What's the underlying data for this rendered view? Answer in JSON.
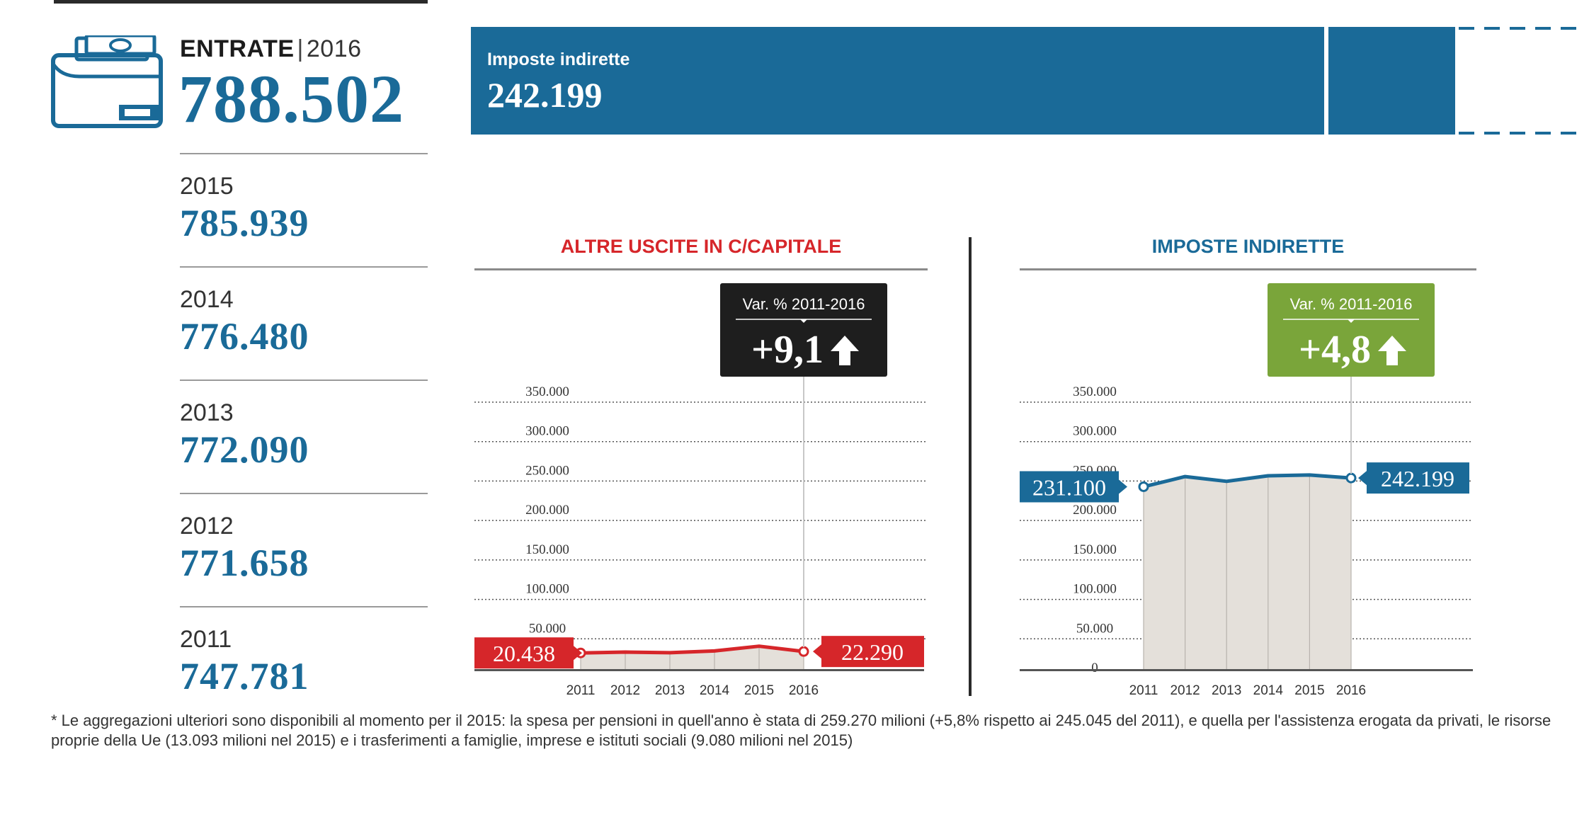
{
  "summary": {
    "label": "ENTRATE",
    "separator": "|",
    "year": "2016",
    "total": "788.502",
    "history": [
      {
        "year": "2015",
        "value": "785.939"
      },
      {
        "year": "2014",
        "value": "776.480"
      },
      {
        "year": "2013",
        "value": "772.090"
      },
      {
        "year": "2012",
        "value": "771.658"
      },
      {
        "year": "2011",
        "value": "747.781"
      }
    ]
  },
  "top_bar": {
    "label": "Imposte indirette",
    "value": "242.199",
    "color": "#1a6a98"
  },
  "chart_data": [
    {
      "type": "area",
      "title": "ALTRE USCITE IN C/CAPITALE",
      "title_color": "#d6262a",
      "categories": [
        "2011",
        "2012",
        "2013",
        "2014",
        "2015",
        "2016"
      ],
      "values": [
        20438,
        21500,
        20800,
        23000,
        29000,
        22290
      ],
      "ylim": [
        0,
        350000
      ],
      "yticks": [
        "50.000",
        "100.000",
        "150.000",
        "200.000",
        "250.000",
        "300.000",
        "350.000"
      ],
      "grid": true,
      "line_color": "#d6262a",
      "start_label": "20.438",
      "end_label": "22.290",
      "callout": {
        "label": "Var. % 2011-2016",
        "value": "+9,1",
        "color": "#1e1e1e"
      }
    },
    {
      "type": "area",
      "title": "IMPOSTE INDIRETTE",
      "title_color": "#1a6a98",
      "categories": [
        "2011",
        "2012",
        "2013",
        "2014",
        "2015",
        "2016"
      ],
      "values": [
        231100,
        244000,
        238000,
        245000,
        246000,
        242199
      ],
      "ylim": [
        0,
        350000
      ],
      "yticks": [
        "0",
        "50.000",
        "100.000",
        "150.000",
        "200.000",
        "250.000",
        "300.000",
        "350.000"
      ],
      "grid": true,
      "line_color": "#1a6a98",
      "start_label": "231.100",
      "end_label": "242.199",
      "callout": {
        "label": "Var. % 2011-2016",
        "value": "+4,8",
        "color": "#7aa53a"
      }
    }
  ],
  "footnote": "* Le aggregazioni ulteriori sono disponibili al momento per il 2015: la spesa per pensioni in quell'anno è stata di 259.270 milioni (+5,8% rispetto ai 245.045 del 2011), e quella per l'assistenza erogata da privati, le risorse proprie della Ue (13.093 milioni nel 2015) e i trasferimenti a famiglie, imprese e istituti sociali (9.080 milioni nel 2015)"
}
